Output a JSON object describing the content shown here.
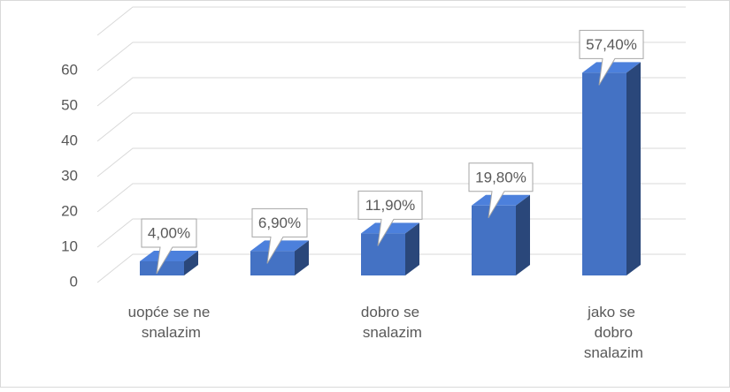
{
  "chart_data": {
    "type": "bar3d",
    "categories": [
      "uopće se ne snalazim",
      null,
      "dobro se snalazim",
      null,
      "jako se dobro snalazim"
    ],
    "values": [
      4.0,
      6.9,
      11.9,
      19.8,
      57.4
    ],
    "value_labels": [
      "4,00%",
      "6,90%",
      "11,90%",
      "19,80%",
      "57,40%"
    ],
    "color": "#4472c4",
    "ylim": [
      0,
      70
    ],
    "yticks": [
      0,
      10,
      20,
      30,
      40,
      50,
      60
    ],
    "grid": true
  }
}
